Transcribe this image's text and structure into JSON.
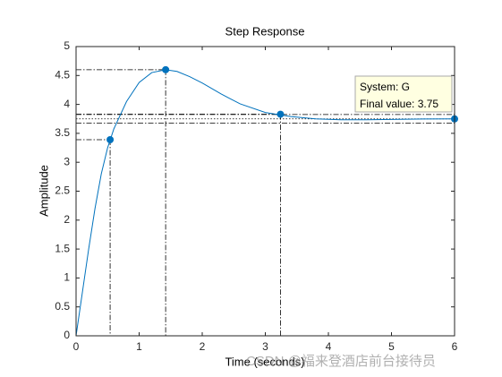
{
  "chart_data": {
    "type": "line",
    "title": "Step Response",
    "xlabel": "Time (seconds)",
    "ylabel": "Amplitude",
    "x": [
      0,
      0.1,
      0.2,
      0.3,
      0.4,
      0.5,
      0.6,
      0.8,
      1.0,
      1.2,
      1.42,
      1.6,
      1.8,
      2.0,
      2.3,
      2.6,
      3.0,
      3.4,
      3.8,
      4.2,
      4.6,
      5.0,
      5.5,
      6.0
    ],
    "series": [
      {
        "name": "G",
        "color": "#0072bd",
        "values": [
          0,
          0.75,
          1.5,
          2.2,
          2.8,
          3.25,
          3.58,
          4.05,
          4.38,
          4.55,
          4.6,
          4.57,
          4.48,
          4.37,
          4.18,
          4.01,
          3.86,
          3.79,
          3.75,
          3.735,
          3.735,
          3.74,
          3.748,
          3.75
        ]
      }
    ],
    "markers": {
      "x": [
        0.54,
        1.42,
        3.24,
        6
      ],
      "values": [
        3.39,
        4.6,
        3.83,
        3.75
      ]
    },
    "settling_bounds": [
      3.675,
      3.825
    ],
    "datatip": [
      "System: G",
      "Final value: 3.75"
    ],
    "xlim": [
      0,
      6
    ],
    "ylim": [
      0,
      5
    ],
    "xticks": [
      0,
      1,
      2,
      3,
      4,
      5,
      6
    ],
    "yticks": [
      0,
      0.5,
      1,
      1.5,
      2,
      2.5,
      3,
      3.5,
      4,
      4.5,
      5
    ],
    "grid": false,
    "watermark": "CSDN @福来登酒店前台接待员"
  }
}
